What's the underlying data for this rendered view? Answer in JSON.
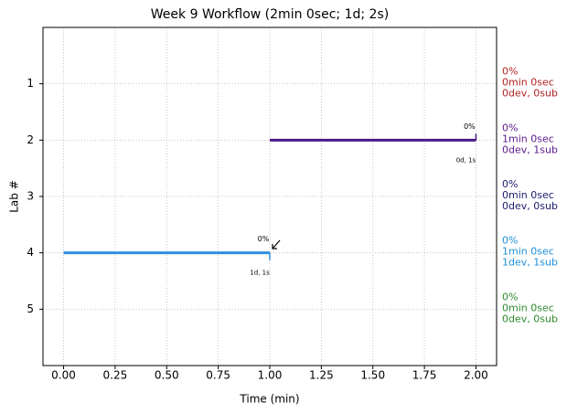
{
  "chart_data": {
    "type": "segments",
    "title": "Week 9 Workflow (2min 0sec; 1d; 2s)",
    "x_label": "Time (min)",
    "y_label": "Lab #",
    "xlim": [
      -0.1,
      2.1
    ],
    "xticks": [
      {
        "value": 0,
        "label": "0.00"
      },
      {
        "value": 0.25,
        "label": "0.25"
      },
      {
        "value": 0.5,
        "label": "0.50"
      },
      {
        "value": 0.75,
        "label": "0.75"
      },
      {
        "value": 1,
        "label": "1.00"
      },
      {
        "value": 1.25,
        "label": "1.25"
      },
      {
        "value": 1.5,
        "label": "1.50"
      },
      {
        "value": 1.75,
        "label": "1.75"
      },
      {
        "value": 2,
        "label": "2.00"
      }
    ],
    "ylim": [
      6,
      0
    ],
    "yticks": [
      1,
      2,
      3,
      4,
      5
    ],
    "grid": true,
    "segments": [
      {
        "lab": 2,
        "start": 1.0,
        "end": 2.0,
        "color": "#4b1a86",
        "pct_label": "0%",
        "duration_label": "0d, 1s"
      },
      {
        "lab": 4,
        "start": 0.0,
        "end": 1.0,
        "color": "#2f8fe0",
        "pct_label": "0%",
        "duration_label": "1d, 1s"
      }
    ],
    "lab_labels": [
      {
        "lab": 1,
        "pct": "0%",
        "time": "0min 0sec",
        "counts": "0dev, 0sub",
        "color": "#b22222"
      },
      {
        "lab": 2,
        "pct": "0%",
        "time": "1min 0sec",
        "counts": "0dev, 1sub",
        "color": "#5b1a8b"
      },
      {
        "lab": 3,
        "pct": "0%",
        "time": "0min 0sec",
        "counts": "0dev, 0sub",
        "color": "#1a1a6e"
      },
      {
        "lab": 4,
        "pct": "0%",
        "time": "1min 0sec",
        "counts": "1dev, 1sub",
        "color": "#1e90d6"
      },
      {
        "lab": 5,
        "pct": "0%",
        "time": "0min 0sec",
        "counts": "0dev, 0sub",
        "color": "#2e8b2e"
      }
    ]
  }
}
